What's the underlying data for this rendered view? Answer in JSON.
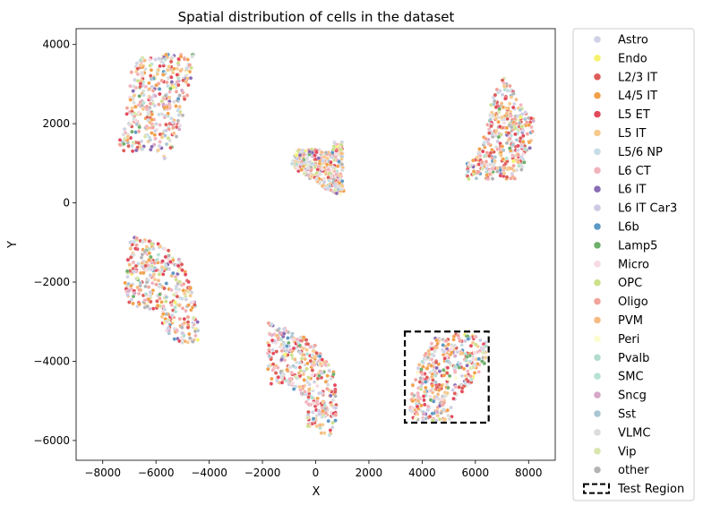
{
  "chart_data": {
    "type": "scatter",
    "title": "Spatial distribution of cells in the dataset",
    "xlabel": "X",
    "ylabel": "Y",
    "xlim": [
      -9000,
      9000
    ],
    "ylim": [
      -6500,
      4400
    ],
    "xticks": [
      -8000,
      -6000,
      -4000,
      -2000,
      0,
      2000,
      4000,
      6000,
      8000
    ],
    "xtick_labels": [
      "−8000",
      "−6000",
      "−4000",
      "−2000",
      "0",
      "2000",
      "4000",
      "6000",
      "8000"
    ],
    "yticks": [
      -6000,
      -4000,
      -2000,
      0,
      2000,
      4000
    ],
    "ytick_labels": [
      "−6000",
      "−4000",
      "−2000",
      "0",
      "2000",
      "4000"
    ],
    "grid": false,
    "legend_position": "outside-right",
    "categories": [
      {
        "name": "Astro",
        "color": "#d0d1e6"
      },
      {
        "name": "Endo",
        "color": "#f7f26b"
      },
      {
        "name": "L2/3 IT",
        "color": "#de5c57"
      },
      {
        "name": "L4/5 IT",
        "color": "#f2a04a"
      },
      {
        "name": "L5 ET",
        "color": "#e2495c"
      },
      {
        "name": "L5 IT",
        "color": "#f7c98d"
      },
      {
        "name": "L5/6 NP",
        "color": "#c6dce6"
      },
      {
        "name": "L6 CT",
        "color": "#f2b3bd"
      },
      {
        "name": "L6 IT",
        "color": "#8a6bb5"
      },
      {
        "name": "L6 IT Car3",
        "color": "#ccc9e2"
      },
      {
        "name": "L6b",
        "color": "#5c98c4"
      },
      {
        "name": "Lamp5",
        "color": "#6daf6b"
      },
      {
        "name": "Micro",
        "color": "#f6dae2"
      },
      {
        "name": "OPC",
        "color": "#cce08a"
      },
      {
        "name": "Oligo",
        "color": "#f2a39b"
      },
      {
        "name": "PVM",
        "color": "#f5bb82"
      },
      {
        "name": "Peri",
        "color": "#fcfccf"
      },
      {
        "name": "Pvalb",
        "color": "#b3dccf"
      },
      {
        "name": "SMC",
        "color": "#b5e2d5"
      },
      {
        "name": "Sncg",
        "color": "#d7a7c7"
      },
      {
        "name": "Sst",
        "color": "#a9c6d4"
      },
      {
        "name": "VLMC",
        "color": "#dcdcdc"
      },
      {
        "name": "Vip",
        "color": "#d8e5ad"
      },
      {
        "name": "other",
        "color": "#b4b4b4"
      }
    ],
    "tissue_sections": [
      {
        "name": "section-top-left",
        "polygon": [
          [
            -7400,
            1300
          ],
          [
            -5800,
            1300
          ],
          [
            -5700,
            1100
          ],
          [
            -5300,
            1500
          ],
          [
            -4900,
            2300
          ],
          [
            -4700,
            3000
          ],
          [
            -4550,
            3850
          ],
          [
            -6900,
            3650
          ],
          [
            -7100,
            2300
          ],
          [
            -7300,
            1900
          ],
          [
            -7400,
            1500
          ]
        ]
      },
      {
        "name": "section-top-middle",
        "polygon": [
          [
            -900,
            1000
          ],
          [
            -700,
            1350
          ],
          [
            300,
            1350
          ],
          [
            600,
            1250
          ],
          [
            700,
            1550
          ],
          [
            1000,
            1550
          ],
          [
            1050,
            300
          ],
          [
            900,
            200
          ],
          [
            400,
            350
          ],
          [
            -900,
            900
          ]
        ]
      },
      {
        "name": "section-top-right",
        "polygon": [
          [
            5600,
            600
          ],
          [
            7500,
            600
          ],
          [
            7900,
            1000
          ],
          [
            8100,
            1400
          ],
          [
            8200,
            2200
          ],
          [
            7800,
            2400
          ],
          [
            7100,
            3200
          ],
          [
            6650,
            2700
          ],
          [
            6400,
            1800
          ],
          [
            6000,
            1150
          ],
          [
            5600,
            950
          ]
        ]
      },
      {
        "name": "section-middle-left",
        "polygon": [
          [
            -7100,
            -1100
          ],
          [
            -6800,
            -850
          ],
          [
            -5700,
            -1050
          ],
          [
            -5000,
            -1500
          ],
          [
            -4600,
            -2300
          ],
          [
            -4400,
            -3000
          ],
          [
            -4400,
            -3500
          ],
          [
            -5200,
            -3600
          ],
          [
            -5600,
            -3300
          ],
          [
            -6000,
            -2700
          ],
          [
            -7000,
            -2600
          ],
          [
            -7200,
            -2200
          ],
          [
            -7100,
            -1500
          ]
        ]
      },
      {
        "name": "section-bottom-middle",
        "polygon": [
          [
            -1800,
            -4600
          ],
          [
            -1100,
            -4600
          ],
          [
            -400,
            -4900
          ],
          [
            -300,
            -5700
          ],
          [
            300,
            -5900
          ],
          [
            700,
            -6000
          ],
          [
            800,
            -5000
          ],
          [
            700,
            -4300
          ],
          [
            400,
            -3900
          ],
          [
            -100,
            -3500
          ],
          [
            -1000,
            -3200
          ],
          [
            -1800,
            -3000
          ]
        ]
      },
      {
        "name": "section-bottom-right",
        "polygon": [
          [
            3500,
            -5500
          ],
          [
            5100,
            -5500
          ],
          [
            5200,
            -5000
          ],
          [
            5500,
            -4800
          ],
          [
            6000,
            -4400
          ],
          [
            6400,
            -4000
          ],
          [
            6400,
            -3400
          ],
          [
            5300,
            -3300
          ],
          [
            4500,
            -3400
          ],
          [
            3900,
            -4000
          ],
          [
            3600,
            -4700
          ]
        ]
      }
    ],
    "test_region": {
      "label": "Test Region",
      "x": [
        3350,
        6500
      ],
      "y": [
        -5550,
        -3250
      ]
    }
  }
}
